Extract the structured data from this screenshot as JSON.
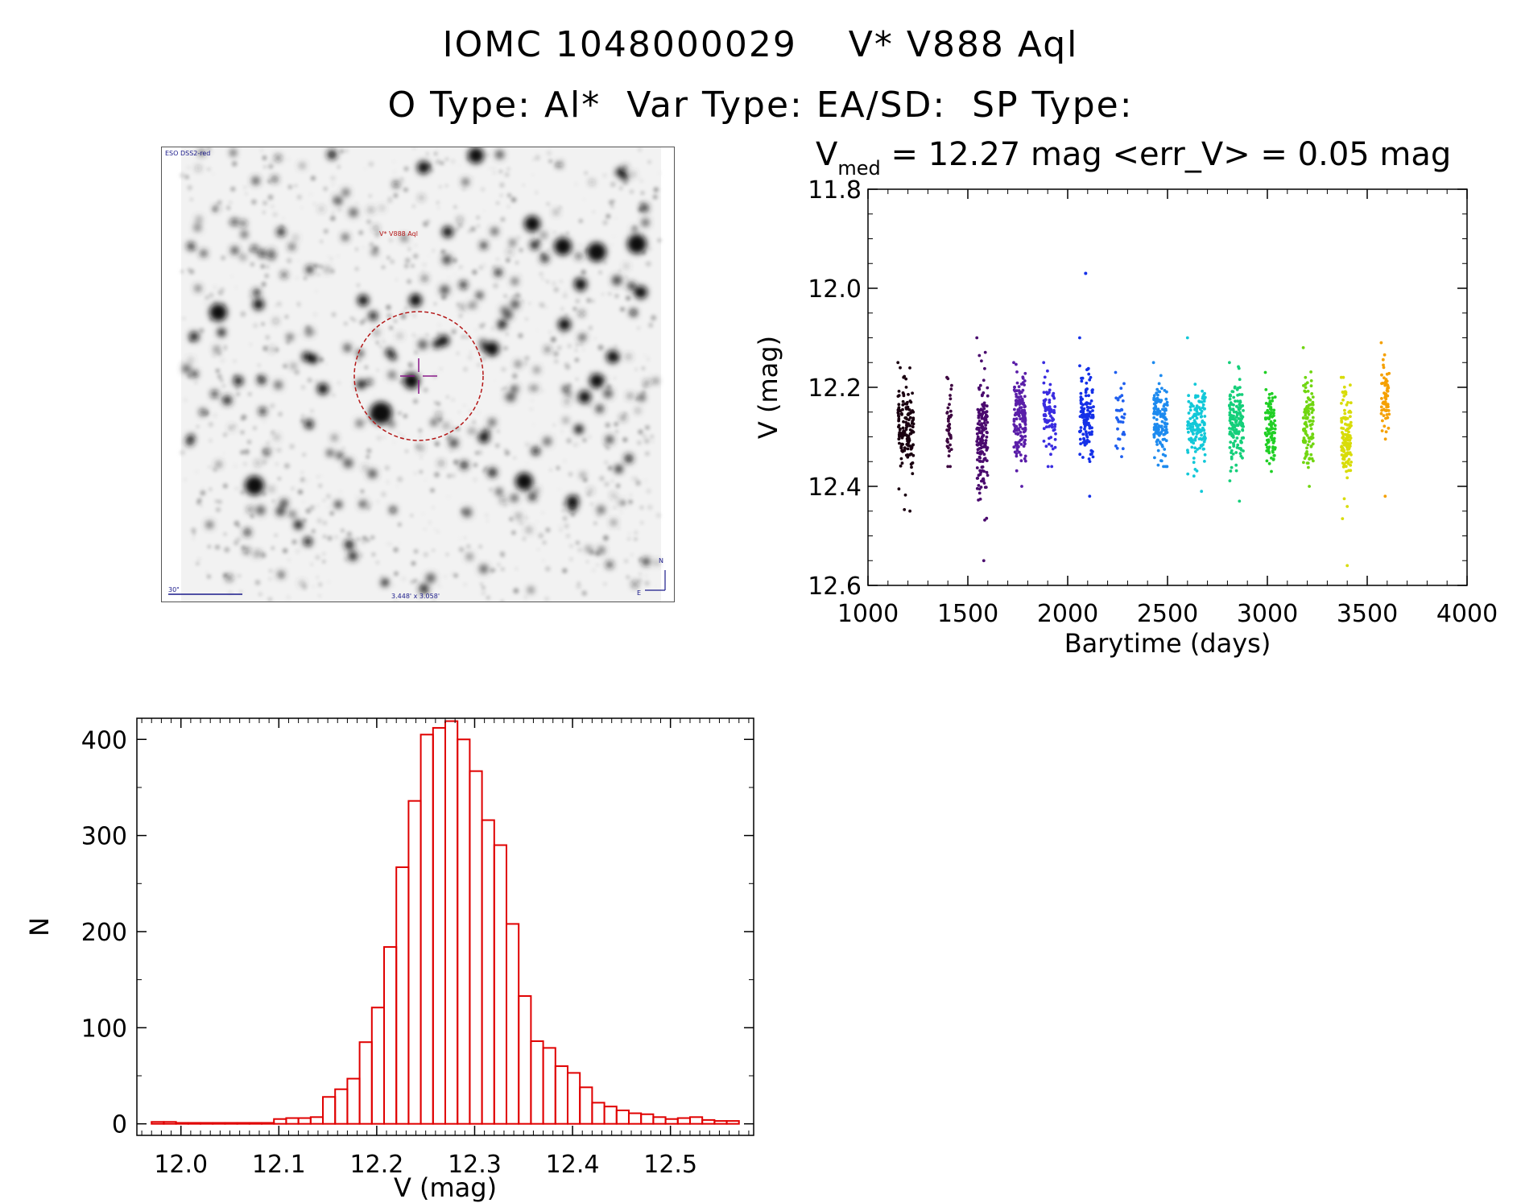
{
  "header": {
    "line1": "IOMC 1048000029    V* V888 Aql",
    "line2": "O Type: Al*  Var Type: EA/SD:  SP Type:"
  },
  "finder": {
    "survey": "ESO DSS2-red",
    "target_label": "V* V888 Aql",
    "scale_label": "30\"",
    "fov_label": "3.448' x 3.058'",
    "north_label": "N",
    "east_label": "E"
  },
  "lightcurve": {
    "v_label": "V",
    "v_sub": "med",
    "stats_text": " = 12.27 mag <err_V> = 0.05 mag",
    "v_med": 12.27,
    "err_v": 0.05,
    "xlabel": "Barytime (days)",
    "ylabel": "V (mag)"
  },
  "chart_data": [
    {
      "type": "scatter",
      "title": "V_med = 12.27 mag <err_V> = 0.05 mag",
      "xlabel": "Barytime (days)",
      "ylabel": "V (mag)",
      "xlim": [
        1000,
        4000
      ],
      "ylim": [
        12.6,
        11.8
      ],
      "y_inverted": true,
      "xticks": [
        "1000",
        "1500",
        "2000",
        "2500",
        "3000",
        "3500",
        "4000"
      ],
      "yticks": [
        "11.8",
        "12.0",
        "12.2",
        "12.4",
        "12.6"
      ],
      "clusters": [
        {
          "x_start": 1150,
          "x_end": 1230,
          "y_center": 12.28,
          "y_spread": 0.05,
          "y_min": 12.15,
          "y_max": 12.45,
          "n": 150,
          "color": "#1a0010"
        },
        {
          "x_start": 1395,
          "x_end": 1420,
          "y_center": 12.28,
          "y_spread": 0.04,
          "y_min": 12.18,
          "y_max": 12.36,
          "n": 40,
          "color": "#3d0640"
        },
        {
          "x_start": 1545,
          "x_end": 1600,
          "y_center": 12.29,
          "y_spread": 0.06,
          "y_min": 12.1,
          "y_max": 12.55,
          "n": 160,
          "color": "#4a0a6e"
        },
        {
          "x_start": 1730,
          "x_end": 1790,
          "y_center": 12.26,
          "y_spread": 0.04,
          "y_min": 12.15,
          "y_max": 12.4,
          "n": 150,
          "color": "#5a1ea8"
        },
        {
          "x_start": 1880,
          "x_end": 1940,
          "y_center": 12.25,
          "y_spread": 0.04,
          "y_min": 12.15,
          "y_max": 12.36,
          "n": 80,
          "color": "#3a2ce0"
        },
        {
          "x_start": 2060,
          "x_end": 2130,
          "y_center": 12.26,
          "y_spread": 0.04,
          "y_min": 12.1,
          "y_max": 12.42,
          "n": 120,
          "color": "#1530e8"
        },
        {
          "x_start": 2240,
          "x_end": 2290,
          "y_center": 12.26,
          "y_spread": 0.04,
          "y_min": 12.17,
          "y_max": 12.34,
          "n": 30,
          "color": "#1f5fef"
        },
        {
          "x_start": 2430,
          "x_end": 2500,
          "y_center": 12.27,
          "y_spread": 0.04,
          "y_min": 12.15,
          "y_max": 12.36,
          "n": 130,
          "color": "#1d8aef"
        },
        {
          "x_start": 2600,
          "x_end": 2690,
          "y_center": 12.28,
          "y_spread": 0.04,
          "y_min": 12.1,
          "y_max": 12.41,
          "n": 150,
          "color": "#12c8d8"
        },
        {
          "x_start": 2810,
          "x_end": 2880,
          "y_center": 12.27,
          "y_spread": 0.04,
          "y_min": 12.15,
          "y_max": 12.43,
          "n": 150,
          "color": "#15cf7a"
        },
        {
          "x_start": 2990,
          "x_end": 3040,
          "y_center": 12.28,
          "y_spread": 0.04,
          "y_min": 12.17,
          "y_max": 12.37,
          "n": 90,
          "color": "#20cf25"
        },
        {
          "x_start": 3180,
          "x_end": 3230,
          "y_center": 12.27,
          "y_spread": 0.04,
          "y_min": 12.12,
          "y_max": 12.4,
          "n": 100,
          "color": "#70d610"
        },
        {
          "x_start": 3370,
          "x_end": 3420,
          "y_center": 12.3,
          "y_spread": 0.05,
          "y_min": 12.18,
          "y_max": 12.56,
          "n": 120,
          "color": "#d8dc08"
        },
        {
          "x_start": 3570,
          "x_end": 3610,
          "y_center": 12.22,
          "y_spread": 0.04,
          "y_min": 12.11,
          "y_max": 12.42,
          "n": 60,
          "color": "#f5a000"
        }
      ],
      "outliers": [
        {
          "x": 2090,
          "y": 11.97
        }
      ]
    },
    {
      "type": "bar",
      "subtype": "histogram",
      "xlabel": "V (mag)",
      "ylabel": "N",
      "xlim": [
        11.96,
        12.58
      ],
      "ylim": [
        0,
        430
      ],
      "xticks": [
        "12.0",
        "12.1",
        "12.2",
        "12.3",
        "12.4",
        "12.5"
      ],
      "yticks": [
        "0",
        "100",
        "200",
        "300",
        "400"
      ],
      "bin_start": 11.97,
      "bin_width": 0.0125,
      "counts": [
        2,
        2,
        1,
        1,
        1,
        1,
        1,
        1,
        1,
        1,
        5,
        6,
        6,
        7,
        28,
        36,
        47,
        85,
        121,
        184,
        267,
        336,
        405,
        412,
        419,
        400,
        367,
        316,
        290,
        208,
        133,
        86,
        79,
        60,
        53,
        38,
        22,
        18,
        14,
        11,
        10,
        7,
        5,
        6,
        7,
        4,
        3,
        3
      ]
    }
  ]
}
